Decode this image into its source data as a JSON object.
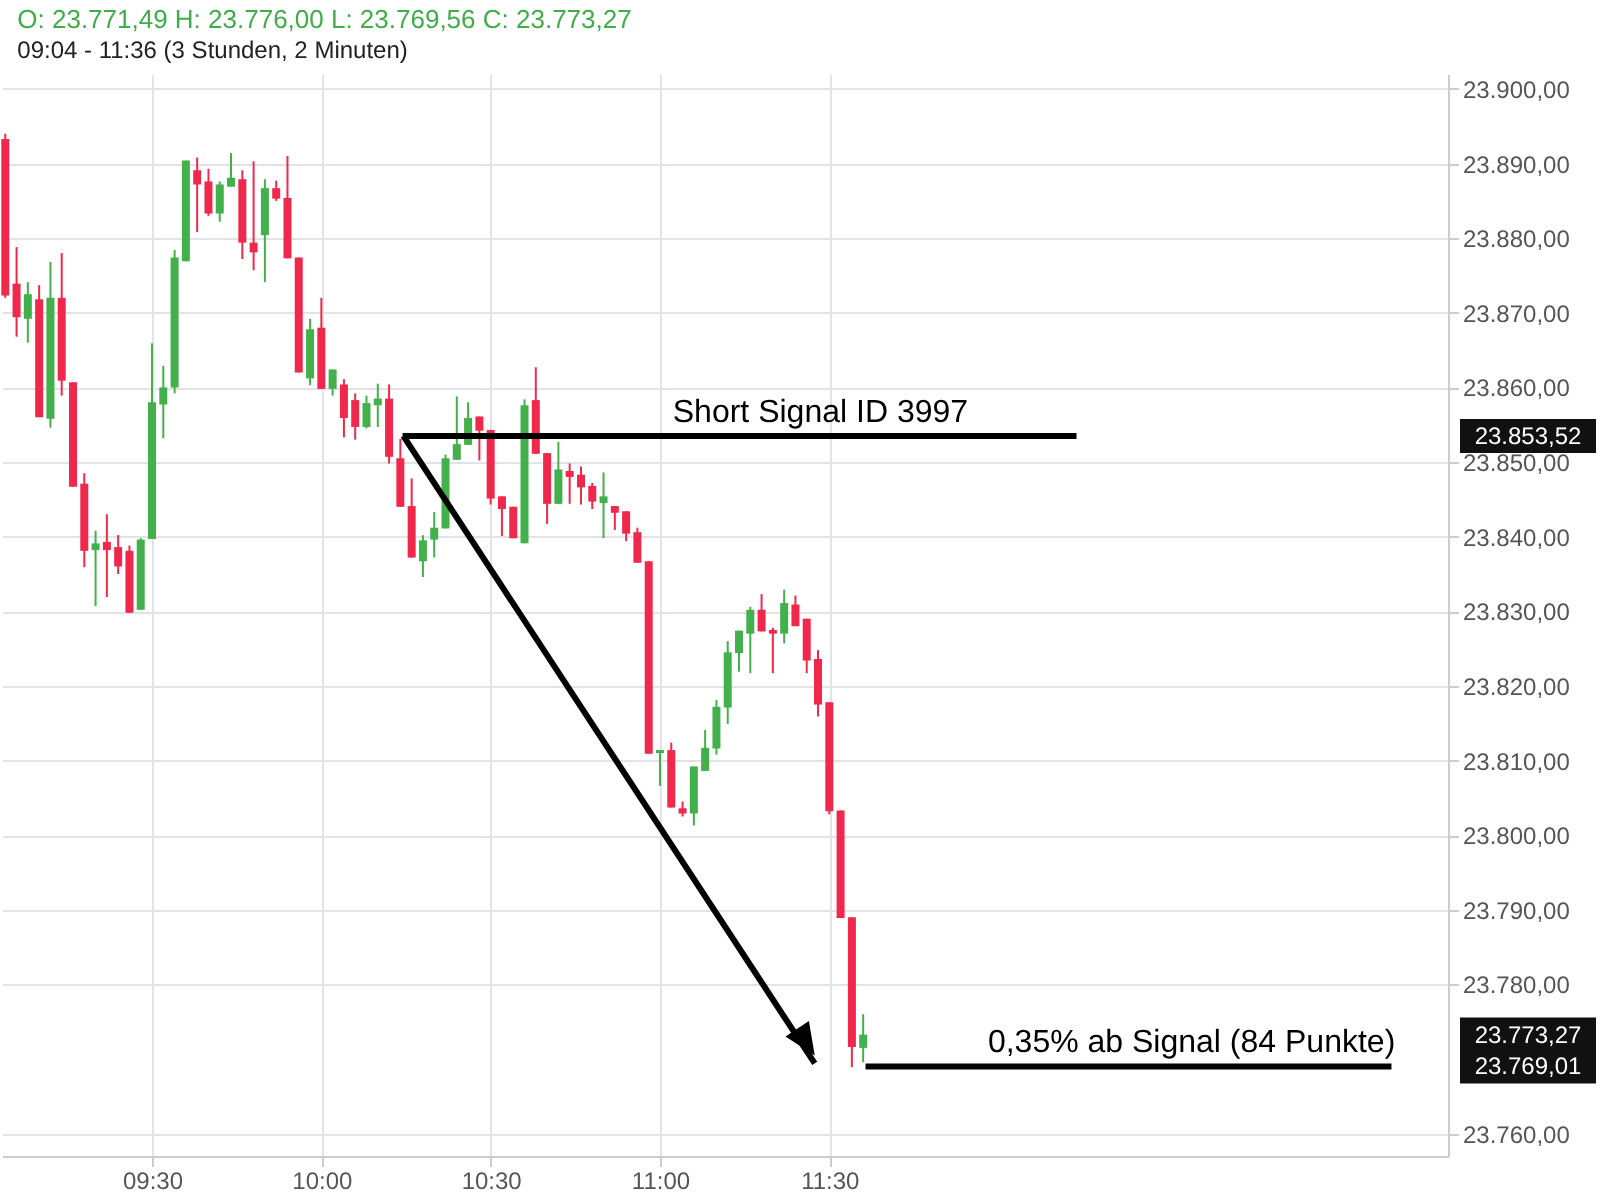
{
  "chart_data": {
    "type": "candlestick",
    "title": "O: 23.771,49  H: 23.776,00  L: 23.769,56  C: 23.773,27",
    "subtitle": "09:04 - 11:36  (3 Stunden, 2 Minuten)",
    "x": [
      9.0667,
      9.1,
      9.1333,
      9.1667,
      9.2,
      9.2333,
      9.2667,
      9.3,
      9.3333,
      9.3667,
      9.4,
      9.4333,
      9.4667,
      9.5,
      9.5333,
      9.5667,
      9.6,
      9.6333,
      9.6667,
      9.7,
      9.7333,
      9.7667,
      9.8,
      9.8333,
      9.8667,
      9.9,
      9.9333,
      9.9667,
      10,
      10.0333,
      10.0667,
      10.1,
      10.1333,
      10.1667,
      10.2,
      10.2333,
      10.2667,
      10.3,
      10.3333,
      10.3667,
      10.4,
      10.4333,
      10.4667,
      10.5,
      10.5333,
      10.5667,
      10.6,
      10.6333,
      10.6667,
      10.7,
      10.7333,
      10.7667,
      10.8,
      10.8333,
      10.8667,
      10.9,
      10.9333,
      10.9667,
      11,
      11.0333,
      11.0667,
      11.1,
      11.1333,
      11.1667,
      11.2,
      11.2333,
      11.2667,
      11.3,
      11.3333,
      11.3667,
      11.4,
      11.4333,
      11.4667,
      11.5,
      11.5333,
      11.5667,
      11.6
    ],
    "ohlc": [
      [
        23893.3,
        23894,
        23872,
        23872.3
      ],
      [
        23873.9,
        23878.8,
        23866.8,
        23869.4
      ],
      [
        23869.2,
        23874.1,
        23866.0,
        23872.5
      ],
      [
        23871.8,
        23873.7,
        23856.0,
        23856.0
      ],
      [
        23855.8,
        23876.8,
        23854.6,
        23872.0
      ],
      [
        23872.0,
        23878.0,
        23858.9,
        23860.9
      ],
      [
        23860.7,
        23860.7,
        23846.7,
        23846.7
      ],
      [
        23847.1,
        23848.5,
        23835.9,
        23838.1
      ],
      [
        23838.2,
        23840.8,
        23830.7,
        23839.1
      ],
      [
        23839.3,
        23843.0,
        23831.9,
        23838.2
      ],
      [
        23838.6,
        23840.2,
        23835.0,
        23836.0
      ],
      [
        23838.1,
        23838.8,
        23829.8,
        23829.8
      ],
      [
        23830.2,
        23839.8,
        23830.2,
        23839.6
      ],
      [
        23839.7,
        23865.9,
        23839.7,
        23858.0
      ],
      [
        23857.7,
        23862.9,
        23853.2,
        23860.0
      ],
      [
        23860.0,
        23878.4,
        23859.2,
        23877.4
      ],
      [
        23876.9,
        23890.4,
        23876.9,
        23890.4
      ],
      [
        23889.1,
        23890.8,
        23880.8,
        23887.2
      ],
      [
        23887.6,
        23889.3,
        23883.0,
        23883.3
      ],
      [
        23883.3,
        23887.6,
        23882.2,
        23887.2
      ],
      [
        23886.9,
        23891.4,
        23886.9,
        23888.1
      ],
      [
        23887.9,
        23889.1,
        23877.2,
        23879.4
      ],
      [
        23879.4,
        23890.3,
        23875.7,
        23878.1
      ],
      [
        23880.4,
        23887.9,
        23874.1,
        23886.7
      ],
      [
        23886.7,
        23887.7,
        23885.0,
        23885.3
      ],
      [
        23885.4,
        23891.0,
        23877.3,
        23877.3
      ],
      [
        23877.4,
        23877.4,
        23862.0,
        23862.0
      ],
      [
        23861.2,
        23869.2,
        23860.3,
        23867.8
      ],
      [
        23868.0,
        23872.0,
        23859.8,
        23859.8
      ],
      [
        23859.8,
        23862.4,
        23858.9,
        23862.4
      ],
      [
        23860.4,
        23861.1,
        23853.3,
        23855.9
      ],
      [
        23858.3,
        23859.2,
        23853.0,
        23854.7
      ],
      [
        23854.7,
        23858.9,
        23854.5,
        23857.9
      ],
      [
        23857.6,
        23860.5,
        23854.7,
        23858.5
      ],
      [
        23858.5,
        23860.4,
        23849.8,
        23850.7
      ],
      [
        23850.5,
        23853.1,
        23844.0,
        23844.0
      ],
      [
        23844.1,
        23847.8,
        23837.2,
        23837.2
      ],
      [
        23836.7,
        23840.2,
        23834.6,
        23839.5
      ],
      [
        23839.6,
        23843.3,
        23837.2,
        23841.2
      ],
      [
        23841.1,
        23851.0,
        23841.1,
        23850.5
      ],
      [
        23850.3,
        23858.8,
        23850.3,
        23852.4
      ],
      [
        23852.3,
        23858.0,
        23852.3,
        23855.9
      ],
      [
        23856.1,
        23856.1,
        23850.2,
        23854.2
      ],
      [
        23854.3,
        23854.3,
        23844.3,
        23845.1
      ],
      [
        23845.4,
        23845.4,
        23840.1,
        23843.7
      ],
      [
        23844.0,
        23844.0,
        23839.8,
        23839.8
      ],
      [
        23839.1,
        23858.4,
        23839.1,
        23857.6
      ],
      [
        23858.3,
        23862.7,
        23851.1,
        23851.1
      ],
      [
        23851.2,
        23851.2,
        23841.7,
        23844.4
      ],
      [
        23844.4,
        23852.7,
        23844.4,
        23849.0
      ],
      [
        23848.8,
        23849.8,
        23844.4,
        23848.0
      ],
      [
        23848.3,
        23849.4,
        23844.3,
        23846.6
      ],
      [
        23846.8,
        23847.2,
        23843.7,
        23844.7
      ],
      [
        23844.5,
        23848.6,
        23839.8,
        23845.4
      ],
      [
        23844.1,
        23844.1,
        23840.9,
        23843.2
      ],
      [
        23843.4,
        23843.4,
        23839.4,
        23840.4
      ],
      [
        23840.6,
        23841.2,
        23836.5,
        23836.5
      ],
      [
        23836.7,
        23836.7,
        23810.9,
        23810.9
      ],
      [
        23811.0,
        23811.4,
        23806.6,
        23811.4
      ],
      [
        23811.4,
        23812.4,
        23803.7,
        23803.7
      ],
      [
        23803.6,
        23804.5,
        23802.5,
        23802.9
      ],
      [
        23802.9,
        23809.2,
        23801.3,
        23809.2
      ],
      [
        23808.6,
        23814.1,
        23808.6,
        23811.7
      ],
      [
        23811.6,
        23818.1,
        23810.8,
        23817.2
      ],
      [
        23817.1,
        23826.0,
        23814.9,
        23824.5
      ],
      [
        23824.4,
        23827.4,
        23821.9,
        23827.4
      ],
      [
        23827.0,
        23830.6,
        23821.7,
        23830.2
      ],
      [
        23830.2,
        23832.3,
        23827.3,
        23827.3
      ],
      [
        23827.5,
        23827.8,
        23821.7,
        23827.0
      ],
      [
        23827.0,
        23832.9,
        23825.7,
        23831.1
      ],
      [
        23830.9,
        23832.1,
        23828.0,
        23828.0
      ],
      [
        23829.0,
        23829.0,
        23821.7,
        23823.4
      ],
      [
        23823.6,
        23824.8,
        23815.9,
        23817.5
      ],
      [
        23817.8,
        23817.8,
        23802.8,
        23803.2
      ],
      [
        23803.3,
        23803.3,
        23788.9,
        23788.9
      ],
      [
        23789.0,
        23789.0,
        23768.9,
        23771.6
      ],
      [
        23771.49,
        23776.0,
        23769.56,
        23773.27
      ]
    ],
    "colors": [
      "#f0294c",
      "#f0294c",
      "#43b14b",
      "#f0294c",
      "#43b14b",
      "#f0294c",
      "#f0294c",
      "#f0294c",
      "#43b14b",
      "#f0294c",
      "#f0294c",
      "#f0294c",
      "#43b14b",
      "#43b14b",
      "#43b14b",
      "#43b14b",
      "#43b14b",
      "#f0294c",
      "#f0294c",
      "#43b14b",
      "#43b14b",
      "#f0294c",
      "#f0294c",
      "#43b14b",
      "#f0294c",
      "#f0294c",
      "#f0294c",
      "#43b14b",
      "#f0294c",
      "#43b14b",
      "#f0294c",
      "#f0294c",
      "#43b14b",
      "#43b14b",
      "#f0294c",
      "#f0294c",
      "#f0294c",
      "#43b14b",
      "#43b14b",
      "#43b14b",
      "#43b14b",
      "#43b14b",
      "#f0294c",
      "#f0294c",
      "#f0294c",
      "#f0294c",
      "#43b14b",
      "#f0294c",
      "#f0294c",
      "#43b14b",
      "#f0294c",
      "#f0294c",
      "#f0294c",
      "#43b14b",
      "#f0294c",
      "#f0294c",
      "#f0294c",
      "#f0294c",
      "#43b14b",
      "#f0294c",
      "#f0294c",
      "#43b14b",
      "#43b14b",
      "#43b14b",
      "#43b14b",
      "#43b14b",
      "#43b14b",
      "#f0294c",
      "#f0294c",
      "#43b14b",
      "#f0294c",
      "#f0294c",
      "#f0294c",
      "#f0294c",
      "#f0294c",
      "#f0294c",
      "#43b14b"
    ],
    "series": [
      {
        "type": "line",
        "color": "#000000",
        "x": [
          10.24,
          12.23
        ],
        "values": [
          23853.5,
          23853.5
        ]
      },
      {
        "type": "line",
        "color": "#000000",
        "x": [
          11.607,
          13.16
        ],
        "values": [
          23769,
          23769
        ]
      },
      {
        "type": "line",
        "color": "#000000",
        "x": [
          10.242,
          11.457
        ],
        "values": [
          23853.5,
          23769.4
        ]
      }
    ],
    "annotations": [
      "Short Signal  ID 3997",
      "0,35% ab Signal (84 Punkte)",
      "23.853,52",
      "23.773,27",
      "23.769,01"
    ],
    "xlim": [
      9.057,
      13.327
    ],
    "xticks": [
      {
        "value": 9.5,
        "label": "09:30"
      },
      {
        "value": 10,
        "label": "10:00"
      },
      {
        "value": 10.5,
        "label": "10:30"
      },
      {
        "value": 11,
        "label": "11:00"
      },
      {
        "value": 11.5,
        "label": "11:30"
      }
    ],
    "ylim": [
      23757,
      23902
    ],
    "yticks": [
      {
        "value": 23760,
        "label": "23.760,00"
      },
      {
        "value": 23780,
        "label": "23.780,00"
      },
      {
        "value": 23790,
        "label": "23.790,00"
      },
      {
        "value": 23800,
        "label": "23.800,00"
      },
      {
        "value": 23810,
        "label": "23.810,00"
      },
      {
        "value": 23820,
        "label": "23.820,00"
      },
      {
        "value": 23830,
        "label": "23.830,00"
      },
      {
        "value": 23840,
        "label": "23.840,00"
      },
      {
        "value": 23850,
        "label": "23.850,00"
      },
      {
        "value": 23860,
        "label": "23.860,00"
      },
      {
        "value": 23870,
        "label": "23.870,00"
      },
      {
        "value": 23880,
        "label": "23.880,00"
      },
      {
        "value": 23890,
        "label": "23.890,00"
      },
      {
        "value": 23900,
        "label": "23.900,00"
      }
    ],
    "grid": true,
    "marker": "none",
    "line_style": "solid"
  }
}
